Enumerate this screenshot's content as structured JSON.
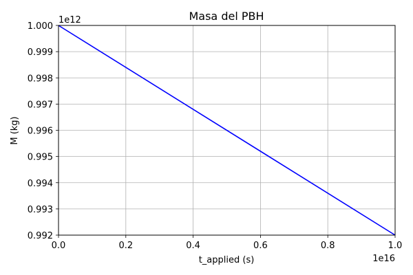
{
  "chart_data": {
    "type": "line",
    "title": "Masa del PBH",
    "xlabel": "t_applied (s)",
    "ylabel": "M (kg)",
    "x_offset_label": "1e16",
    "y_offset_label": "1e12",
    "xlim": [
      0.0,
      1.0
    ],
    "ylim": [
      0.992,
      1.0
    ],
    "x_ticks": [
      "0.0",
      "0.2",
      "0.4",
      "0.6",
      "0.8",
      "1.0"
    ],
    "y_ticks": [
      "0.992",
      "0.993",
      "0.994",
      "0.995",
      "0.996",
      "0.997",
      "0.998",
      "0.999",
      "1.000"
    ],
    "grid": true,
    "series": [
      {
        "color": "#0000ff",
        "x": [
          0.0,
          1.0
        ],
        "y": [
          1.0,
          0.992
        ]
      }
    ]
  }
}
